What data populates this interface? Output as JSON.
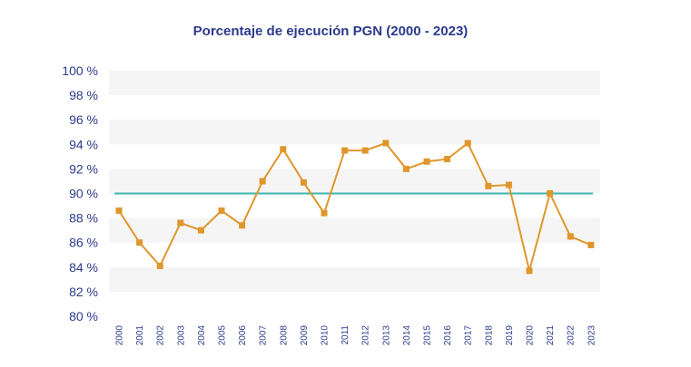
{
  "chart_data": {
    "type": "line",
    "title": "Porcentaje de ejecución PGN (2000 - 2023)",
    "xlabel": "",
    "ylabel": "",
    "ylim": [
      80,
      100
    ],
    "y_ticks": [
      "80 %",
      "82 %",
      "84 %",
      "86 %",
      "88 %",
      "90 %",
      "92 %",
      "94 %",
      "96 %",
      "98 %",
      "100 %"
    ],
    "y_tick_values": [
      80,
      82,
      84,
      86,
      88,
      90,
      92,
      94,
      96,
      98,
      100
    ],
    "categories": [
      "2000",
      "2001",
      "2002",
      "2003",
      "2004",
      "2005",
      "2006",
      "2007",
      "2008",
      "2009",
      "2010",
      "2011",
      "2012",
      "2013",
      "2014",
      "2015",
      "2016",
      "2017",
      "2018",
      "2019",
      "2020",
      "2021",
      "2022",
      "2023"
    ],
    "series": [
      {
        "values": [
          88.6,
          86.0,
          84.1,
          87.6,
          87.0,
          88.6,
          87.4,
          91.0,
          93.6,
          90.9,
          88.4,
          93.5,
          93.5,
          94.1,
          92.0,
          92.6,
          92.8,
          94.1,
          90.6,
          90.7,
          83.7,
          90.0,
          86.5,
          85.8
        ]
      }
    ],
    "reference_line": {
      "value": 90
    },
    "grid": "alternating-bands",
    "legend": "none",
    "colors": {
      "line": "#e0962b",
      "marker": "#e0962b",
      "reference": "#3bb7b0",
      "band": "#f5f5f5",
      "title": "#2c3a8c",
      "text": "#2c3a8c"
    }
  }
}
